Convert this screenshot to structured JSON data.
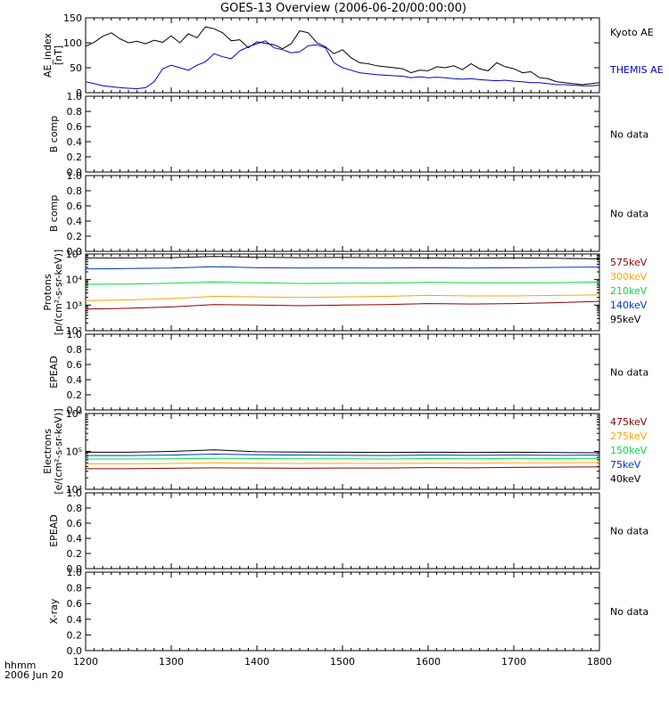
{
  "title": "GOES-13 Overview (2006-06-20/00:00:00)",
  "footer": {
    "line1": "hhmm",
    "line2": "2006 Jun 20"
  },
  "colors": {
    "black": "#000000",
    "blue": "#0000cc",
    "brown": "#8b0000",
    "orange": "#ffa500",
    "green": "#00e040",
    "royal": "#0033cc"
  },
  "chart_data": [
    {
      "type": "line",
      "ylabel": "AE_index [nT]",
      "ylim": [
        0,
        150
      ],
      "yticks": [
        "0",
        "50",
        "100",
        "150"
      ],
      "series": [
        {
          "name": "Kyoto AE",
          "color": "#000000",
          "x": [
            1200,
            1210,
            1220,
            1230,
            1240,
            1250,
            1260,
            1270,
            1280,
            1290,
            1300,
            1310,
            1320,
            1330,
            1340,
            1350,
            1360,
            1370,
            1380,
            1390,
            1400,
            1410,
            1420,
            1430,
            1440,
            1450,
            1460,
            1470,
            1480,
            1490,
            1500,
            1510,
            1520,
            1530,
            1540,
            1550,
            1560,
            1570,
            1580,
            1590,
            1600,
            1610,
            1620,
            1630,
            1640,
            1650,
            1660,
            1670,
            1680,
            1690,
            1700,
            1710,
            1720,
            1730,
            1740,
            1750,
            1760,
            1770,
            1780,
            1790,
            1800
          ],
          "y": [
            93,
            101,
            113,
            120,
            108,
            100,
            103,
            98,
            105,
            101,
            114,
            100,
            118,
            110,
            132,
            128,
            120,
            104,
            106,
            90,
            102,
            99,
            96,
            88,
            98,
            124,
            120,
            100,
            92,
            78,
            86,
            70,
            60,
            58,
            54,
            52,
            50,
            48,
            40,
            45,
            44,
            52,
            50,
            54,
            46,
            58,
            48,
            44,
            60,
            52,
            48,
            40,
            42,
            30,
            28,
            22,
            20,
            18,
            16,
            18,
            20
          ]
        },
        {
          "name": "THEMIS AE",
          "color": "#0000cc",
          "x": [
            1200,
            1210,
            1220,
            1230,
            1240,
            1250,
            1260,
            1270,
            1280,
            1290,
            1300,
            1310,
            1320,
            1330,
            1340,
            1350,
            1360,
            1370,
            1380,
            1390,
            1400,
            1410,
            1420,
            1430,
            1440,
            1450,
            1460,
            1470,
            1480,
            1490,
            1500,
            1510,
            1520,
            1530,
            1540,
            1550,
            1560,
            1570,
            1580,
            1590,
            1600,
            1610,
            1620,
            1630,
            1640,
            1650,
            1660,
            1670,
            1680,
            1690,
            1700,
            1710,
            1720,
            1730,
            1740,
            1750,
            1760,
            1770,
            1780,
            1790,
            1800
          ],
          "y": [
            22,
            18,
            14,
            12,
            10,
            9,
            8,
            10,
            22,
            48,
            55,
            50,
            45,
            55,
            62,
            78,
            72,
            68,
            84,
            92,
            98,
            104,
            90,
            86,
            80,
            82,
            94,
            96,
            90,
            60,
            50,
            45,
            40,
            38,
            36,
            35,
            34,
            33,
            30,
            32,
            30,
            31,
            30,
            28,
            27,
            28,
            26,
            25,
            24,
            25,
            23,
            22,
            20,
            20,
            18,
            16,
            16,
            15,
            14,
            14,
            15
          ]
        }
      ]
    },
    {
      "type": "line",
      "ylabel": "B comp",
      "ylim": [
        0,
        1.0
      ],
      "yticks": [
        "0.0",
        "0.2",
        "0.4",
        "0.6",
        "0.8",
        "1.0"
      ],
      "status": "No data",
      "series": []
    },
    {
      "type": "line",
      "ylabel": "B comp",
      "ylim": [
        0,
        1.0
      ],
      "yticks": [
        "0.0",
        "0.2",
        "0.4",
        "0.6",
        "0.8",
        "1.0"
      ],
      "status": "No data",
      "series": []
    },
    {
      "type": "line",
      "ylabel": "Protons [p/(cm²-s-sr-keV)]",
      "scale": "log",
      "ylim": [
        100,
        100000
      ],
      "yticks": [
        "10²",
        "10³",
        "10⁴",
        "10⁵"
      ],
      "labels": [
        {
          "text": "575keV",
          "color": "#8b0000"
        },
        {
          "text": "300keV",
          "color": "#ffa500"
        },
        {
          "text": "210keV",
          "color": "#00e040"
        },
        {
          "text": "140keV",
          "color": "#0033cc"
        },
        {
          "text": "95keV",
          "color": "#000000"
        }
      ],
      "series": [
        {
          "name": "95keV",
          "color": "#000000",
          "x": [
            1200,
            1250,
            1300,
            1350,
            1400,
            1450,
            1500,
            1550,
            1600,
            1650,
            1700,
            1750,
            1800
          ],
          "y": [
            70000,
            70000,
            72000,
            80000,
            75000,
            72000,
            73000,
            71000,
            70000,
            68000,
            70000,
            68000,
            65000
          ]
        },
        {
          "name": "140keV",
          "color": "#0033cc",
          "x": [
            1200,
            1250,
            1300,
            1350,
            1400,
            1450,
            1500,
            1550,
            1600,
            1650,
            1700,
            1750,
            1800
          ],
          "y": [
            26000,
            27000,
            28000,
            32000,
            29000,
            28000,
            28500,
            28000,
            29000,
            28000,
            29000,
            30000,
            31000
          ]
        },
        {
          "name": "210keV",
          "color": "#00e040",
          "x": [
            1200,
            1250,
            1300,
            1350,
            1400,
            1450,
            1500,
            1550,
            1600,
            1650,
            1700,
            1750,
            1800
          ],
          "y": [
            6500,
            6700,
            7200,
            8000,
            7500,
            7000,
            7200,
            7300,
            7800,
            7500,
            7400,
            7600,
            8000
          ]
        },
        {
          "name": "300keV",
          "color": "#ffa500",
          "x": [
            1200,
            1250,
            1300,
            1350,
            1400,
            1450,
            1500,
            1550,
            1600,
            1650,
            1700,
            1750,
            1800
          ],
          "y": [
            1500,
            1600,
            1800,
            2200,
            2100,
            2000,
            2100,
            2200,
            2400,
            2300,
            2300,
            2400,
            2500
          ]
        },
        {
          "name": "575keV",
          "color": "#8b0000",
          "x": [
            1200,
            1250,
            1300,
            1350,
            1400,
            1450,
            1500,
            1550,
            1600,
            1650,
            1700,
            1750,
            1800
          ],
          "y": [
            700,
            750,
            850,
            1050,
            1000,
            950,
            1000,
            1050,
            1150,
            1100,
            1150,
            1250,
            1400
          ]
        }
      ]
    },
    {
      "type": "line",
      "ylabel": "EPEAD",
      "ylim": [
        0,
        1.0
      ],
      "yticks": [
        "0.0",
        "0.2",
        "0.4",
        "0.6",
        "0.8",
        "1.0"
      ],
      "status": "No data",
      "series": []
    },
    {
      "type": "line",
      "ylabel": "Electrons [e/(cm²-s-sr-keV)]",
      "scale": "log",
      "ylim": [
        10000,
        1000000
      ],
      "yticks": [
        "10⁴",
        "10⁵",
        "10⁶"
      ],
      "labels": [
        {
          "text": "475keV",
          "color": "#8b0000"
        },
        {
          "text": "275keV",
          "color": "#ffa500"
        },
        {
          "text": "150keV",
          "color": "#00e040"
        },
        {
          "text": "75keV",
          "color": "#0033cc"
        },
        {
          "text": "40keV",
          "color": "#000000"
        }
      ],
      "series": [
        {
          "name": "40keV",
          "color": "#000000",
          "x": [
            1200,
            1250,
            1300,
            1350,
            1400,
            1450,
            1500,
            1550,
            1600,
            1650,
            1700,
            1750,
            1800
          ],
          "y": [
            95000,
            95000,
            100000,
            110000,
            98000,
            96000,
            95000,
            94000,
            95000,
            94000,
            95000,
            93000,
            92000
          ]
        },
        {
          "name": "75keV",
          "color": "#0033cc",
          "x": [
            1200,
            1250,
            1300,
            1350,
            1400,
            1450,
            1500,
            1550,
            1600,
            1650,
            1700,
            1750,
            1800
          ],
          "y": [
            78000,
            78000,
            80000,
            85000,
            82000,
            80000,
            79000,
            78000,
            80000,
            79000,
            80000,
            79000,
            80000
          ]
        },
        {
          "name": "150keV",
          "color": "#00e040",
          "x": [
            1200,
            1250,
            1300,
            1350,
            1400,
            1450,
            1500,
            1550,
            1600,
            1650,
            1700,
            1750,
            1800
          ],
          "y": [
            63000,
            63000,
            64000,
            66000,
            65000,
            64000,
            64000,
            63000,
            65000,
            64000,
            66000,
            65000,
            66000
          ]
        },
        {
          "name": "275keV",
          "color": "#ffa500",
          "x": [
            1200,
            1250,
            1300,
            1350,
            1400,
            1450,
            1500,
            1550,
            1600,
            1650,
            1700,
            1750,
            1800
          ],
          "y": [
            47000,
            47000,
            48000,
            50000,
            49000,
            48000,
            48500,
            48000,
            49000,
            49000,
            50000,
            50000,
            51000
          ]
        },
        {
          "name": "475keV",
          "color": "#8b0000",
          "x": [
            1200,
            1250,
            1300,
            1350,
            1400,
            1450,
            1500,
            1550,
            1600,
            1650,
            1700,
            1750,
            1800
          ],
          "y": [
            35000,
            35000,
            36000,
            37000,
            36500,
            36000,
            36500,
            36500,
            37500,
            37000,
            38000,
            38500,
            39000
          ]
        }
      ]
    },
    {
      "type": "line",
      "ylabel": "EPEAD",
      "ylim": [
        0,
        1.0
      ],
      "yticks": [
        "0.0",
        "0.2",
        "0.4",
        "0.6",
        "0.8",
        "1.0"
      ],
      "status": "No data",
      "series": []
    },
    {
      "type": "line",
      "ylabel": "X-ray",
      "ylim": [
        0,
        1.0
      ],
      "yticks": [
        "0.0",
        "0.2",
        "0.4",
        "0.6",
        "0.8",
        "1.0"
      ],
      "status": "No data",
      "series": []
    }
  ],
  "x_axis": {
    "range": [
      1200,
      1800
    ],
    "ticks": [
      "1200",
      "1300",
      "1400",
      "1500",
      "1600",
      "1700",
      "1800"
    ]
  }
}
